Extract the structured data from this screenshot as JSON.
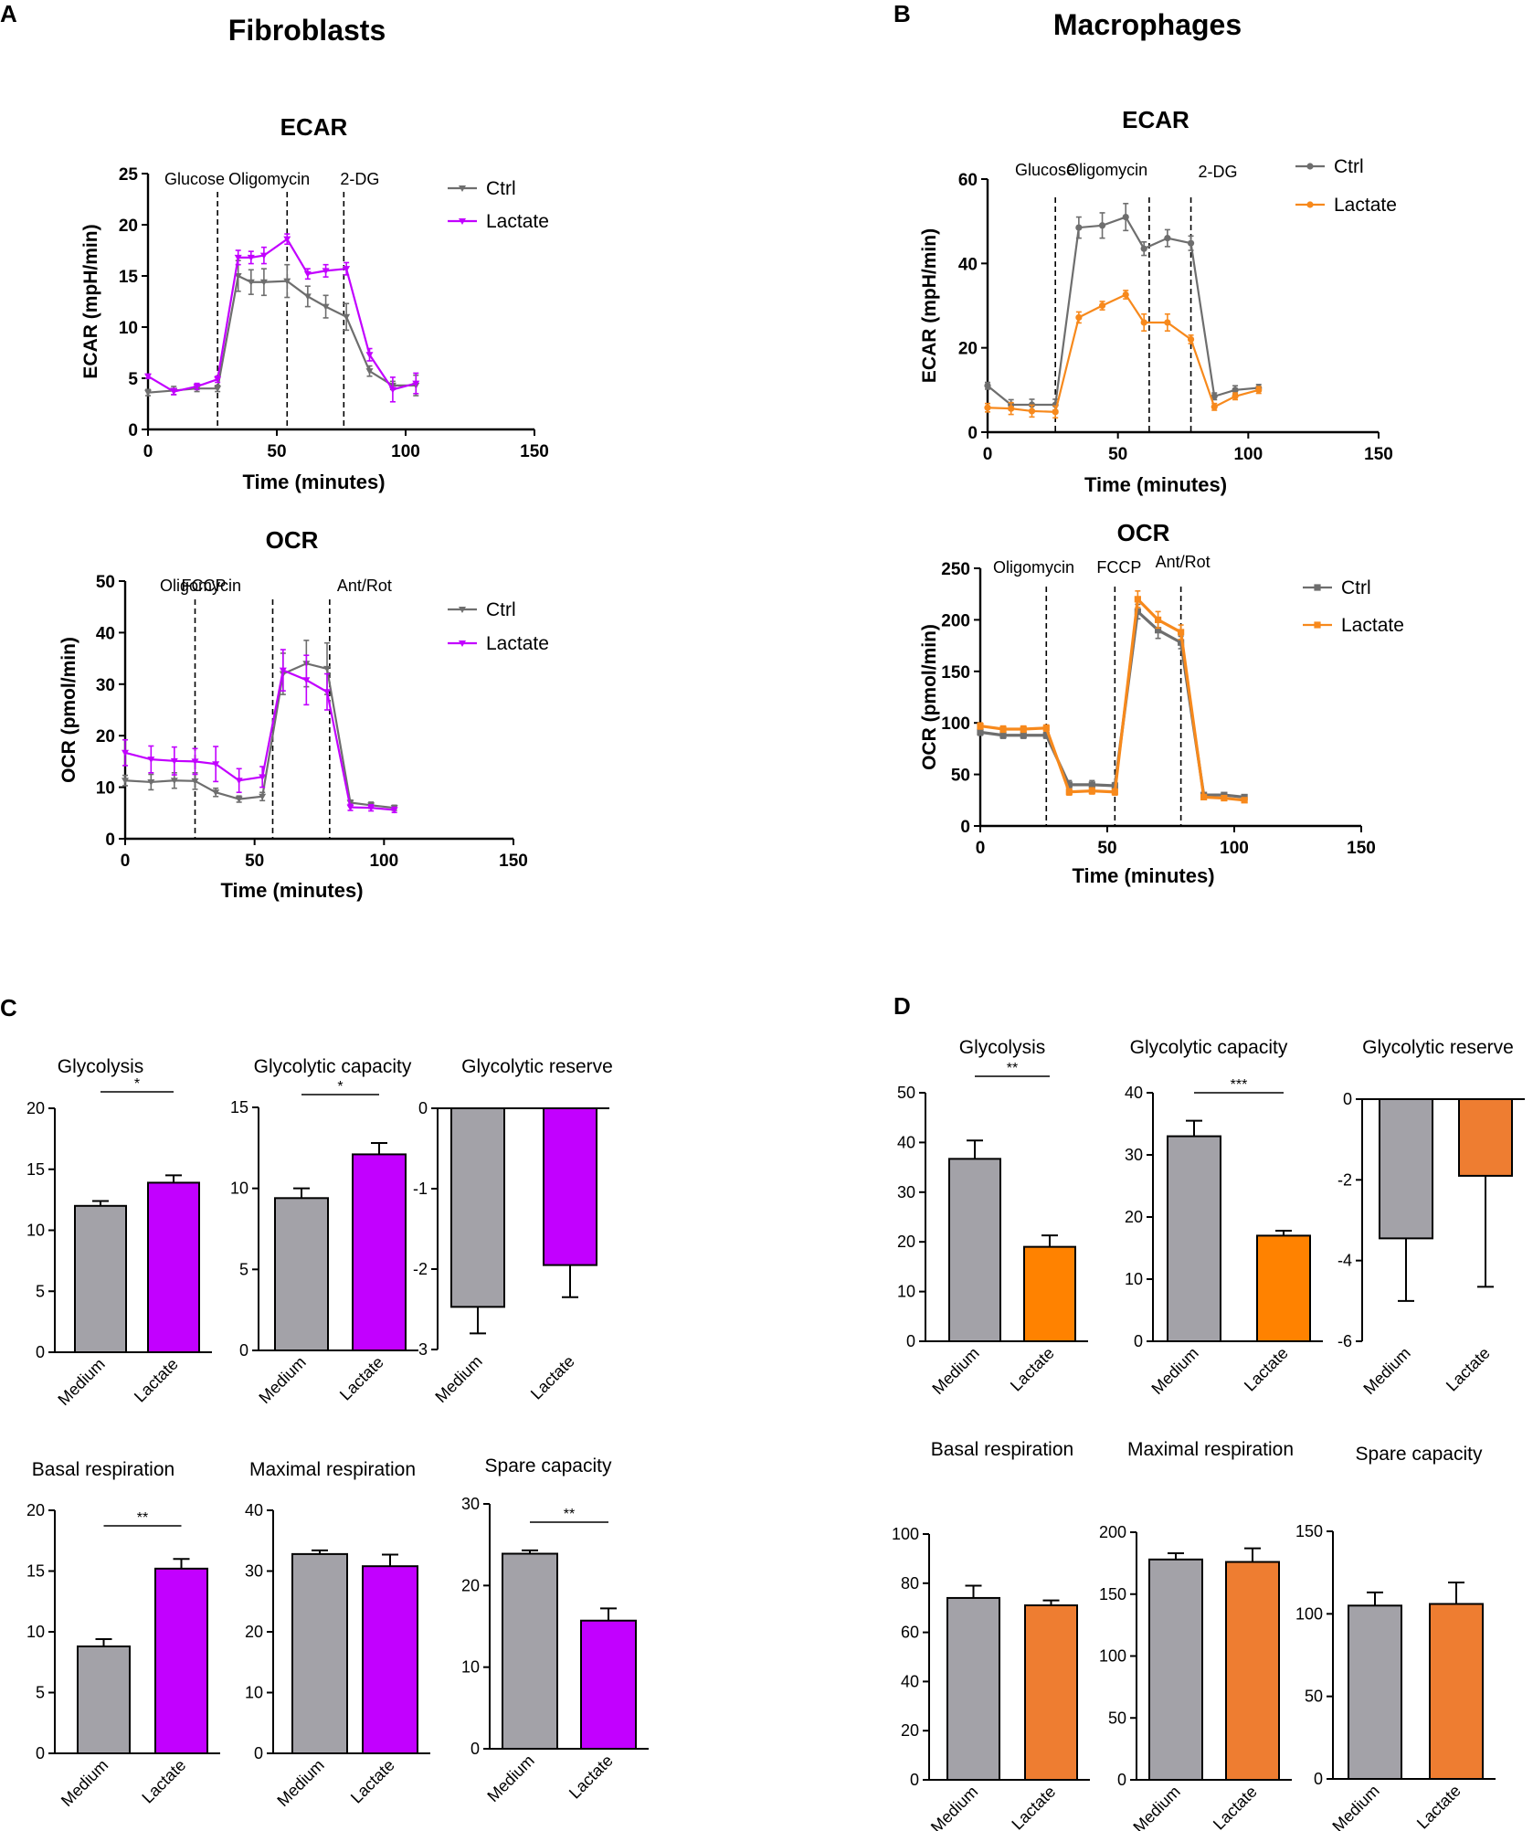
{
  "colors": {
    "ctrl": "#6e6e6e",
    "ctrl_bar": "#a3a2a8",
    "fibro_lactate": "#c200ff",
    "macro_line_lactate": "#f7891c",
    "macro_bar_lactate_c": "#ff8200",
    "macro_bar_lactate_d": "#ee7d31"
  },
  "panels": {
    "A": {
      "letter": "A",
      "title": "Fibroblasts"
    },
    "B": {
      "letter": "B",
      "title": "Macrophages"
    },
    "C": {
      "letter": "C"
    },
    "D": {
      "letter": "D"
    }
  },
  "chart_data": [
    {
      "id": "A-ECAR",
      "type": "line",
      "title": "ECAR",
      "xlabel": "Time (minutes)",
      "ylabel": "ECAR (mpH/min)",
      "xlim": [
        0,
        150
      ],
      "ylim": [
        0,
        25
      ],
      "xticks": [
        0,
        50,
        100,
        150
      ],
      "yticks": [
        0,
        5,
        10,
        15,
        20,
        25
      ],
      "injections": [
        {
          "x": 27,
          "label": "Glucose"
        },
        {
          "x": 54,
          "label": "Oligomycin"
        },
        {
          "x": 76,
          "label": "2-DG"
        }
      ],
      "x": [
        0,
        10,
        19,
        27,
        35,
        40,
        45,
        54,
        62,
        69,
        77,
        86,
        95,
        104
      ],
      "series": [
        {
          "name": "Ctrl",
          "color": "#6e6e6e",
          "marker": "triangle",
          "values": [
            3.6,
            3.8,
            4.0,
            4.0,
            15.0,
            14.4,
            14.4,
            14.5,
            13.0,
            12.0,
            11.0,
            5.7,
            4.3,
            4.3
          ],
          "errors": [
            0.3,
            0.4,
            0.3,
            0.3,
            1.5,
            1.2,
            1.3,
            1.6,
            1.0,
            1.1,
            1.3,
            0.5,
            0.4,
            1.0
          ]
        },
        {
          "name": "Lactate",
          "color": "#c200ff",
          "marker": "triangle",
          "values": [
            5.2,
            3.7,
            4.2,
            4.9,
            16.8,
            16.8,
            17.0,
            18.6,
            15.2,
            15.5,
            15.7,
            7.3,
            3.9,
            4.5
          ],
          "errors": [
            0.2,
            0.3,
            0.3,
            0.3,
            0.7,
            0.6,
            0.8,
            0.5,
            0.5,
            0.6,
            0.6,
            0.6,
            1.2,
            1.0
          ]
        }
      ]
    },
    {
      "id": "A-OCR",
      "type": "line",
      "title": "OCR",
      "xlabel": "Time (minutes)",
      "ylabel": "OCR (pmol/min)",
      "xlim": [
        0,
        150
      ],
      "ylim": [
        0,
        50
      ],
      "xticks": [
        0,
        50,
        100,
        150
      ],
      "yticks": [
        0,
        10,
        20,
        30,
        40,
        50
      ],
      "injections": [
        {
          "x": 27,
          "label": "Oligomycin"
        },
        {
          "x": 57,
          "label": "FCCP"
        },
        {
          "x": 79,
          "label": "Ant/Rot"
        }
      ],
      "x": [
        0,
        10,
        19,
        27,
        35,
        44,
        53,
        61,
        70,
        78,
        87,
        95,
        104
      ],
      "series": [
        {
          "name": "Ctrl",
          "color": "#6e6e6e",
          "marker": "triangle",
          "values": [
            11.3,
            11.0,
            11.3,
            11.2,
            9.0,
            7.7,
            8.2,
            32.0,
            34.0,
            33.0,
            7.0,
            6.5,
            6.0
          ],
          "errors": [
            1.0,
            1.5,
            1.5,
            1.6,
            0.8,
            0.6,
            0.8,
            4.0,
            4.5,
            5.0,
            0.5,
            0.6,
            0.5
          ]
        },
        {
          "name": "Lactate",
          "color": "#c200ff",
          "marker": "triangle",
          "values": [
            16.7,
            15.4,
            15.1,
            15.0,
            14.5,
            11.3,
            12.0,
            32.7,
            30.8,
            28.5,
            6.1,
            6.0,
            5.6
          ],
          "errors": [
            2.5,
            2.6,
            2.7,
            2.5,
            3.4,
            2.3,
            2.0,
            4.0,
            4.8,
            3.5,
            0.6,
            0.6,
            0.5
          ]
        }
      ]
    },
    {
      "id": "B-ECAR",
      "type": "line",
      "title": "ECAR",
      "xlabel": "Time (minutes)",
      "ylabel": "ECAR (mpH/min)",
      "xlim": [
        0,
        150
      ],
      "ylim": [
        0,
        60
      ],
      "xticks": [
        0,
        50,
        100,
        150
      ],
      "yticks": [
        0,
        20,
        40,
        60
      ],
      "injections": [
        {
          "x": 26,
          "label": "Glucose"
        },
        {
          "x": 62,
          "label": "Oligomycin"
        },
        {
          "x": 78,
          "label": "2-DG"
        }
      ],
      "x": [
        0,
        9,
        17,
        26,
        35,
        44,
        53,
        60,
        69,
        78,
        87,
        95,
        104
      ],
      "series": [
        {
          "name": "Ctrl",
          "color": "#6e6e6e",
          "marker": "circle",
          "values": [
            11.0,
            6.5,
            6.5,
            6.5,
            48.5,
            49.0,
            51.0,
            43.5,
            46.0,
            44.8,
            8.5,
            10.0,
            10.5
          ],
          "errors": [
            0.8,
            1.2,
            1.3,
            1.3,
            2.5,
            3.0,
            3.2,
            1.6,
            2.0,
            1.7,
            0.8,
            1.0,
            0.8
          ]
        },
        {
          "name": "Lactate",
          "color": "#f7891c",
          "marker": "circle",
          "values": [
            5.8,
            5.6,
            5.0,
            4.8,
            27.2,
            30.0,
            32.6,
            26.0,
            26.0,
            22.0,
            6.0,
            8.5,
            10.0
          ],
          "errors": [
            1.0,
            1.4,
            1.4,
            1.4,
            1.3,
            1.0,
            1.0,
            2.0,
            2.0,
            1.0,
            0.8,
            0.8,
            0.8
          ]
        }
      ]
    },
    {
      "id": "B-OCR",
      "type": "line",
      "title": "OCR",
      "xlabel": "Time (minutes)",
      "ylabel": "OCR (pmol/min)",
      "xlim": [
        0,
        150
      ],
      "ylim": [
        0,
        250
      ],
      "xticks": [
        0,
        50,
        100,
        150
      ],
      "yticks": [
        0,
        50,
        100,
        150,
        200,
        250
      ],
      "injections": [
        {
          "x": 26,
          "label": "Oligomycin"
        },
        {
          "x": 53,
          "label": "FCCP"
        },
        {
          "x": 79,
          "label": "Ant/Rot"
        }
      ],
      "x": [
        0,
        9,
        17,
        26,
        35,
        44,
        53,
        62,
        70,
        79,
        88,
        96,
        104
      ],
      "series": [
        {
          "name": "Ctrl",
          "color": "#6e6e6e",
          "marker": "square",
          "values": [
            91,
            88,
            88,
            88,
            40,
            40,
            39,
            208,
            190,
            178,
            30,
            30,
            28
          ],
          "errors": [
            3,
            3,
            3,
            3,
            4,
            4,
            3,
            7,
            8,
            6,
            2,
            2,
            2
          ]
        },
        {
          "name": "Lactate",
          "color": "#f7891c",
          "marker": "square",
          "values": [
            97,
            94,
            94,
            95,
            33,
            34,
            33,
            220,
            200,
            188,
            28,
            27,
            25
          ],
          "errors": [
            3,
            3,
            3,
            3,
            3,
            3,
            3,
            8,
            8,
            7,
            2,
            2,
            2
          ]
        }
      ]
    },
    {
      "id": "C1",
      "type": "bar",
      "title": "Glycolysis",
      "categories": [
        "Medium",
        "Lactate"
      ],
      "values": [
        12.0,
        13.9
      ],
      "errors": [
        0.4,
        0.6
      ],
      "ylim": [
        0,
        20
      ],
      "yticks": [
        0,
        5,
        10,
        15,
        20
      ],
      "sig": "*"
    },
    {
      "id": "C2",
      "type": "bar",
      "title": "Glycolytic capacity",
      "categories": [
        "Medium",
        "Lactate"
      ],
      "values": [
        9.4,
        12.1
      ],
      "errors": [
        0.6,
        0.7
      ],
      "ylim": [
        0,
        15
      ],
      "yticks": [
        0,
        5,
        10,
        15
      ],
      "sig": "*"
    },
    {
      "id": "C3",
      "type": "bar",
      "title": "Glycolytic reserve",
      "categories": [
        "Medium",
        "Lactate"
      ],
      "values": [
        -2.47,
        -1.95
      ],
      "errors": [
        0.33,
        0.4
      ],
      "ylim": [
        -3,
        0
      ],
      "yticks": [
        -3,
        -2,
        -1,
        0
      ],
      "sig": ""
    },
    {
      "id": "C4",
      "type": "bar",
      "title": "Basal respiration",
      "categories": [
        "Medium",
        "Lactate"
      ],
      "values": [
        8.8,
        15.2
      ],
      "errors": [
        0.6,
        0.8
      ],
      "ylim": [
        0,
        20
      ],
      "yticks": [
        0,
        5,
        10,
        15,
        20
      ],
      "sig": "**"
    },
    {
      "id": "C5",
      "type": "bar",
      "title": "Maximal respiration",
      "categories": [
        "Medium",
        "Lactate"
      ],
      "values": [
        32.8,
        30.8
      ],
      "errors": [
        0.6,
        1.9
      ],
      "ylim": [
        0,
        40
      ],
      "yticks": [
        0,
        10,
        20,
        30,
        40
      ],
      "sig": ""
    },
    {
      "id": "C6",
      "type": "bar",
      "title": "Spare capacity",
      "categories": [
        "Medium",
        "Lactate"
      ],
      "values": [
        23.9,
        15.7
      ],
      "errors": [
        0.4,
        1.5
      ],
      "ylim": [
        0,
        30
      ],
      "yticks": [
        0,
        10,
        20,
        30
      ],
      "sig": "**"
    },
    {
      "id": "D1",
      "type": "bar",
      "title": "Glycolysis",
      "categories": [
        "Medium",
        "Lactate"
      ],
      "values": [
        36.7,
        19.0
      ],
      "errors": [
        3.7,
        2.3
      ],
      "ylim": [
        0,
        50
      ],
      "yticks": [
        0,
        10,
        20,
        30,
        40,
        50
      ],
      "sig": "**"
    },
    {
      "id": "D2",
      "type": "bar",
      "title": "Glycolytic capacity",
      "categories": [
        "Medium",
        "Lactate"
      ],
      "values": [
        33.0,
        17.0
      ],
      "errors": [
        2.5,
        0.8
      ],
      "ylim": [
        0,
        40
      ],
      "yticks": [
        0,
        10,
        20,
        30,
        40
      ],
      "sig": "***"
    },
    {
      "id": "D3",
      "type": "bar",
      "title": "Glycolytic reserve",
      "categories": [
        "Medium",
        "Lactate"
      ],
      "values": [
        -3.45,
        -1.9
      ],
      "errors": [
        1.55,
        2.75
      ],
      "ylim": [
        -6,
        0
      ],
      "yticks": [
        -6,
        -4,
        -2,
        0
      ],
      "sig": ""
    },
    {
      "id": "D4",
      "type": "bar",
      "title": "Basal respiration",
      "categories": [
        "Medium",
        "Lactate"
      ],
      "values": [
        74.0,
        71.0
      ],
      "errors": [
        5.0,
        2.0
      ],
      "ylim": [
        0,
        100
      ],
      "yticks": [
        0,
        20,
        40,
        60,
        80,
        100
      ],
      "sig": ""
    },
    {
      "id": "D5",
      "type": "bar",
      "title": "Maximal respiration",
      "categories": [
        "Medium",
        "Lactate"
      ],
      "values": [
        178,
        176
      ],
      "errors": [
        5,
        11
      ],
      "ylim": [
        0,
        200
      ],
      "yticks": [
        0,
        50,
        100,
        150,
        200
      ],
      "sig": ""
    },
    {
      "id": "D6",
      "type": "bar",
      "title": "Spare capacity",
      "categories": [
        "Medium",
        "Lactate"
      ],
      "values": [
        105,
        106
      ],
      "errors": [
        8,
        13
      ],
      "ylim": [
        0,
        150
      ],
      "yticks": [
        0,
        50,
        100,
        150
      ],
      "sig": ""
    }
  ]
}
